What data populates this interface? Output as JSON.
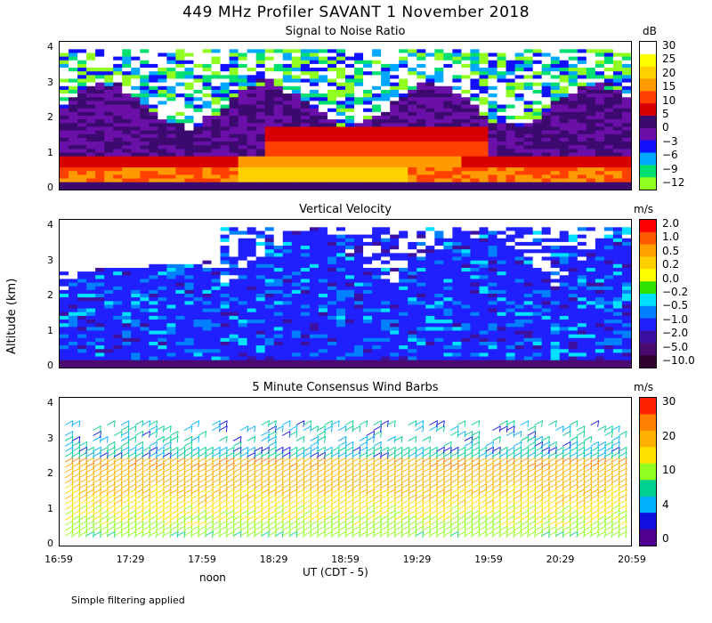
{
  "header": {
    "title": "449 MHz Profiler SAVANT  1 November 2018"
  },
  "y_axis_label": "Altitude (km)",
  "x_axis": {
    "label": "UT  (CDT - 5)",
    "noon_label": "noon",
    "ticks": [
      "16:59",
      "17:29",
      "17:59",
      "18:29",
      "18:59",
      "19:29",
      "19:59",
      "20:29",
      "20:59"
    ]
  },
  "footer": {
    "note": "Simple filtering applied"
  },
  "chart_data": [
    {
      "type": "heatmap",
      "title": "Signal to Noise Ratio",
      "xlabel": "UT  (CDT - 5)",
      "ylabel": "Altitude (km)",
      "ylim": [
        0,
        4
      ],
      "yticks": [
        "0",
        "1",
        "2",
        "3",
        "4"
      ],
      "colorbar": {
        "unit": "dB",
        "labels": [
          "30",
          "25",
          "20",
          "15",
          "10",
          "5",
          "0",
          "−3",
          "−6",
          "−9",
          "−12"
        ],
        "colors": [
          "#ffffff",
          "#ffff00",
          "#ffd000",
          "#ff9a00",
          "#ff4000",
          "#d80000",
          "#3c0a6e",
          "#6a10a8",
          "#1010ff",
          "#00a8ff",
          "#00e070",
          "#90ff20"
        ]
      },
      "description_levels_dB": {
        "surface_layer_0_0.6km": 15,
        "elevated_layer_1_1.6km": 10,
        "cirrus_2.5_4km": -6,
        "background": 0
      }
    },
    {
      "type": "heatmap",
      "title": "Vertical Velocity",
      "xlabel": "UT  (CDT - 5)",
      "ylabel": "Altitude (km)",
      "ylim": [
        0,
        4
      ],
      "yticks": [
        "0",
        "1",
        "2",
        "3",
        "4"
      ],
      "colorbar": {
        "unit": "m/s",
        "labels": [
          "2.0",
          "1.0",
          "0.5",
          "0.2",
          "0.0",
          "−0.2",
          "−0.5",
          "−1.0",
          "−2.0",
          "−5.0",
          "−10.0"
        ],
        "colors": [
          "#ff0000",
          "#ff5a00",
          "#ffa000",
          "#ffd000",
          "#ffff00",
          "#30e000",
          "#00e0ff",
          "#0080ff",
          "#2020ff",
          "#3c10a0",
          "#4a0a70",
          "#300030"
        ]
      },
      "typical_value_ms": -2.0
    },
    {
      "type": "scatter",
      "title": "5 Minute Consensus Wind Barbs",
      "xlabel": "UT  (CDT - 5)",
      "ylabel": "Altitude (km)",
      "ylim": [
        0,
        4
      ],
      "yticks": [
        "0",
        "1",
        "2",
        "3",
        "4"
      ],
      "colorbar": {
        "unit": "m/s",
        "labels": [
          "30",
          "20",
          "10",
          "4",
          "0"
        ],
        "colors": [
          "#ff2000",
          "#ff8000",
          "#ffb000",
          "#ffe000",
          "#90ff20",
          "#00d090",
          "#00b0ff",
          "#1010e0",
          "#500090"
        ]
      },
      "wind_speed_by_altitude_ms": {
        "0.5": 10,
        "1.0": 14,
        "1.5": 18,
        "2.0": 20,
        "2.5": 14,
        "3.0": 6
      }
    }
  ]
}
